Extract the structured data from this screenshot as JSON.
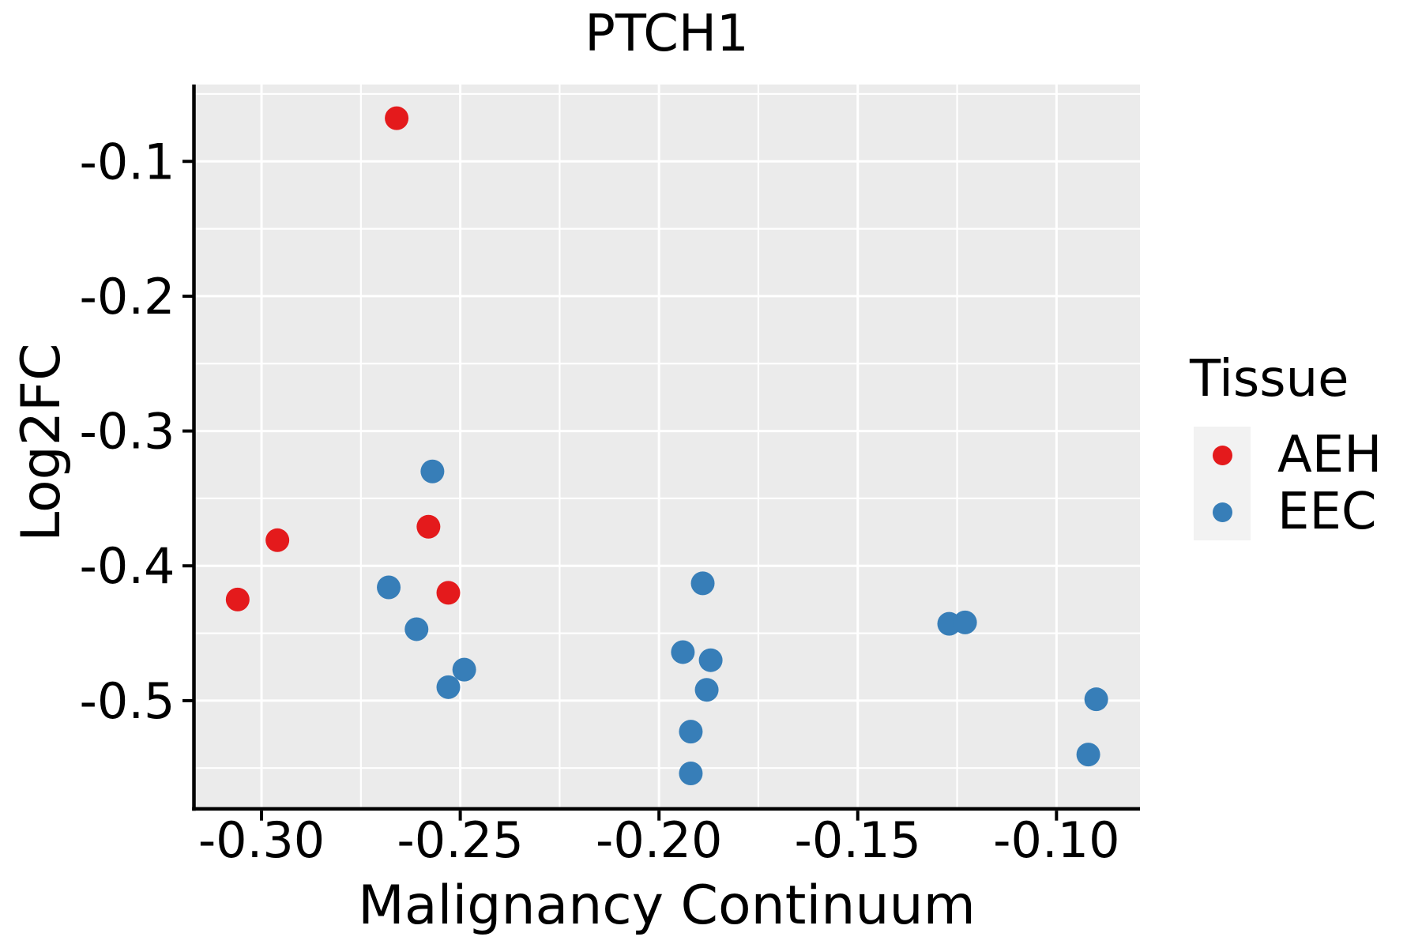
{
  "title": "PTCH1",
  "legend": {
    "title": "Tissue",
    "items": [
      {
        "label": "AEH",
        "color": "#E41A1C"
      },
      {
        "label": "EEC",
        "color": "#377EB8"
      }
    ]
  },
  "colors": {
    "panel_background": "#EBEBEB",
    "gridline": "#FFFFFF",
    "axis_line": "#000000",
    "tick_text": "#000000",
    "legend_key_background": "#F2F2F2",
    "aeh": "#E41A1C",
    "eec": "#377EB8"
  },
  "chart_data": {
    "type": "scatter",
    "title": "PTCH1",
    "xlabel": "Malignancy Continuum",
    "ylabel": "Log2FC",
    "xlim": [
      -0.317,
      -0.079
    ],
    "ylim": [
      -0.579,
      -0.043
    ],
    "grid": "on",
    "legend_position": "right",
    "x_axis": {
      "tick_values": [
        -0.3,
        -0.25,
        -0.2,
        -0.15,
        -0.1
      ],
      "tick_labels": [
        "-0.30",
        "-0.25",
        "-0.20",
        "-0.15",
        "-0.10"
      ],
      "minor_tick_values": [
        -0.275,
        -0.225,
        -0.175,
        -0.125
      ]
    },
    "y_axis": {
      "tick_values": [
        -0.1,
        -0.2,
        -0.3,
        -0.4,
        -0.5
      ],
      "tick_labels": [
        "-0.1",
        "-0.2",
        "-0.3",
        "-0.4",
        "-0.5"
      ],
      "minor_tick_values": [
        -0.05,
        -0.15,
        -0.25,
        -0.35,
        -0.45,
        -0.55
      ]
    },
    "series": [
      {
        "name": "AEH",
        "color": "#E41A1C",
        "points": [
          [
            -0.306,
            -0.425
          ],
          [
            -0.296,
            -0.381
          ],
          [
            -0.266,
            -0.068
          ],
          [
            -0.258,
            -0.371
          ],
          [
            -0.253,
            -0.42
          ]
        ]
      },
      {
        "name": "EEC",
        "color": "#377EB8",
        "points": [
          [
            -0.268,
            -0.416
          ],
          [
            -0.261,
            -0.447
          ],
          [
            -0.257,
            -0.33
          ],
          [
            -0.253,
            -0.49
          ],
          [
            -0.249,
            -0.477
          ],
          [
            -0.194,
            -0.464
          ],
          [
            -0.192,
            -0.523
          ],
          [
            -0.192,
            -0.554
          ],
          [
            -0.189,
            -0.413
          ],
          [
            -0.188,
            -0.492
          ],
          [
            -0.187,
            -0.47
          ],
          [
            -0.127,
            -0.443
          ],
          [
            -0.123,
            -0.442
          ],
          [
            -0.092,
            -0.54
          ],
          [
            -0.09,
            -0.499
          ]
        ]
      }
    ]
  }
}
